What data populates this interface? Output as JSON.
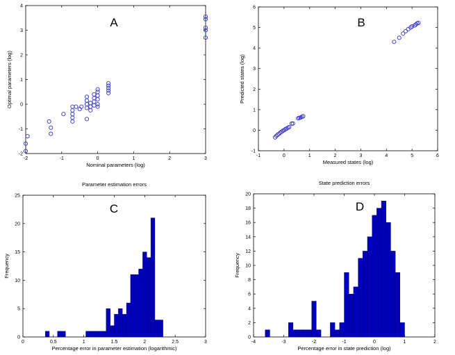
{
  "colors": {
    "marker": "#3333cc",
    "bar": "#0000bb",
    "bar_edge": "#000055",
    "axis": "#000000",
    "background": "#ffffff"
  },
  "chart_data": [
    {
      "panel": "A",
      "type": "scatter",
      "title": "",
      "label": "A",
      "xlabel": "Nominal parameters (log)",
      "ylabel": "Optimal parameters (log)",
      "xlim": [
        -2,
        3
      ],
      "ylim": [
        -2,
        4
      ],
      "xticks": [
        -2,
        -1,
        0,
        1,
        2,
        3
      ],
      "yticks": [
        -2,
        -1,
        0,
        1,
        2,
        3,
        4
      ],
      "marker": "open-circle",
      "points": [
        [
          -2.0,
          -1.9
        ],
        [
          -2.0,
          -1.6
        ],
        [
          -1.95,
          -1.3
        ],
        [
          -1.35,
          -0.7
        ],
        [
          -1.3,
          -0.95
        ],
        [
          -1.3,
          -1.2
        ],
        [
          -0.95,
          -0.4
        ],
        [
          -0.7,
          -0.1
        ],
        [
          -0.7,
          -0.25
        ],
        [
          -0.7,
          -0.4
        ],
        [
          -0.7,
          -0.55
        ],
        [
          -0.7,
          -0.7
        ],
        [
          -0.6,
          -0.1
        ],
        [
          -0.5,
          -0.2
        ],
        [
          -0.45,
          -0.1
        ],
        [
          -0.3,
          0.0
        ],
        [
          -0.3,
          -0.15
        ],
        [
          -0.3,
          -0.6
        ],
        [
          -0.3,
          0.15
        ],
        [
          -0.3,
          0.3
        ],
        [
          -0.2,
          -0.25
        ],
        [
          -0.2,
          -0.1
        ],
        [
          -0.2,
          0.05
        ],
        [
          -0.1,
          0.1
        ],
        [
          -0.1,
          -0.05
        ],
        [
          -0.1,
          0.25
        ],
        [
          -0.1,
          0.4
        ],
        [
          0.0,
          0.2
        ],
        [
          0.0,
          0.35
        ],
        [
          0.0,
          0.5
        ],
        [
          0.0,
          0.0
        ],
        [
          0.0,
          0.6
        ],
        [
          0.0,
          -0.1
        ],
        [
          0.3,
          0.45
        ],
        [
          0.3,
          0.55
        ],
        [
          0.3,
          0.65
        ],
        [
          0.3,
          0.75
        ],
        [
          0.3,
          0.85
        ],
        [
          3.0,
          2.7
        ],
        [
          3.0,
          3.0
        ],
        [
          3.0,
          3.1
        ],
        [
          3.0,
          3.45
        ],
        [
          3.0,
          3.55
        ]
      ]
    },
    {
      "panel": "B",
      "type": "scatter",
      "title": "",
      "label": "B",
      "xlabel": "Measured states (log)",
      "ylabel": "Predicted states (log)",
      "xlim": [
        -1,
        6
      ],
      "ylim": [
        -1,
        6
      ],
      "xticks": [
        -1,
        0,
        1,
        2,
        3,
        4,
        5,
        6
      ],
      "yticks": [
        -1,
        0,
        1,
        2,
        3,
        4,
        5,
        6
      ],
      "marker": "open-circle",
      "points": [
        [
          -0.35,
          -0.35
        ],
        [
          -0.3,
          -0.28
        ],
        [
          -0.25,
          -0.22
        ],
        [
          -0.2,
          -0.18
        ],
        [
          -0.15,
          -0.12
        ],
        [
          -0.1,
          -0.08
        ],
        [
          -0.05,
          -0.03
        ],
        [
          0.0,
          0.0
        ],
        [
          0.05,
          0.05
        ],
        [
          0.1,
          0.08
        ],
        [
          0.15,
          0.12
        ],
        [
          0.2,
          0.15
        ],
        [
          0.3,
          0.32
        ],
        [
          0.35,
          0.33
        ],
        [
          0.55,
          0.58
        ],
        [
          0.6,
          0.6
        ],
        [
          0.65,
          0.62
        ],
        [
          0.7,
          0.65
        ],
        [
          0.75,
          0.68
        ],
        [
          4.3,
          4.3
        ],
        [
          4.5,
          4.5
        ],
        [
          4.65,
          4.7
        ],
        [
          4.75,
          4.82
        ],
        [
          4.85,
          4.92
        ],
        [
          4.95,
          5.0
        ],
        [
          5.0,
          5.05
        ],
        [
          5.1,
          5.1
        ],
        [
          5.15,
          5.15
        ],
        [
          5.2,
          5.2
        ],
        [
          5.25,
          5.22
        ]
      ]
    },
    {
      "panel": "C",
      "type": "bar",
      "title": "Parameter estimation errors",
      "label": "C",
      "xlabel": "Percentage error in parameter estimation (logarithmic)",
      "ylabel": "Frequency",
      "xlim": [
        0,
        3
      ],
      "ylim": [
        0,
        25
      ],
      "xticks": [
        0,
        0.5,
        1,
        1.5,
        2,
        2.5,
        3
      ],
      "yticks": [
        0,
        5,
        10,
        15,
        20,
        25
      ],
      "bin_width": 0.0667,
      "bins": [
        [
          0.367,
          1
        ],
        [
          0.567,
          1
        ],
        [
          0.633,
          1
        ],
        [
          1.033,
          1
        ],
        [
          1.1,
          1
        ],
        [
          1.167,
          1
        ],
        [
          1.233,
          1
        ],
        [
          1.3,
          1
        ],
        [
          1.367,
          5
        ],
        [
          1.433,
          2
        ],
        [
          1.5,
          4
        ],
        [
          1.567,
          5
        ],
        [
          1.633,
          4
        ],
        [
          1.7,
          6
        ],
        [
          1.767,
          11
        ],
        [
          1.833,
          11
        ],
        [
          1.9,
          12
        ],
        [
          1.967,
          15
        ],
        [
          2.033,
          14
        ],
        [
          2.1,
          21
        ],
        [
          2.167,
          3
        ],
        [
          2.233,
          3
        ]
      ]
    },
    {
      "panel": "D",
      "type": "bar",
      "title": "State prediction errors",
      "label": "D",
      "xlabel": "Percentage error in state prediction (log)",
      "ylabel": "Frequency",
      "xlim": [
        -4,
        2
      ],
      "ylim": [
        0,
        20
      ],
      "xticks": [
        -4,
        -3,
        -2,
        -1,
        0,
        1,
        2
      ],
      "yticks": [
        0,
        2,
        4,
        6,
        8,
        10,
        12,
        14,
        16,
        18,
        20
      ],
      "bin_width": 0.154,
      "bins": [
        [
          -3.615,
          1
        ],
        [
          -2.846,
          2
        ],
        [
          -2.692,
          1
        ],
        [
          -2.538,
          1
        ],
        [
          -2.385,
          1
        ],
        [
          -2.231,
          1
        ],
        [
          -2.077,
          5
        ],
        [
          -1.923,
          1
        ],
        [
          -1.462,
          2
        ],
        [
          -1.308,
          1
        ],
        [
          -1.154,
          2
        ],
        [
          -1.0,
          9
        ],
        [
          -0.846,
          6
        ],
        [
          -0.692,
          7
        ],
        [
          -0.538,
          11
        ],
        [
          -0.385,
          12
        ],
        [
          -0.231,
          14
        ],
        [
          -0.077,
          17
        ],
        [
          0.077,
          18
        ],
        [
          0.231,
          19
        ],
        [
          0.385,
          16
        ],
        [
          0.538,
          12
        ],
        [
          0.692,
          9
        ],
        [
          0.846,
          2
        ]
      ]
    }
  ]
}
